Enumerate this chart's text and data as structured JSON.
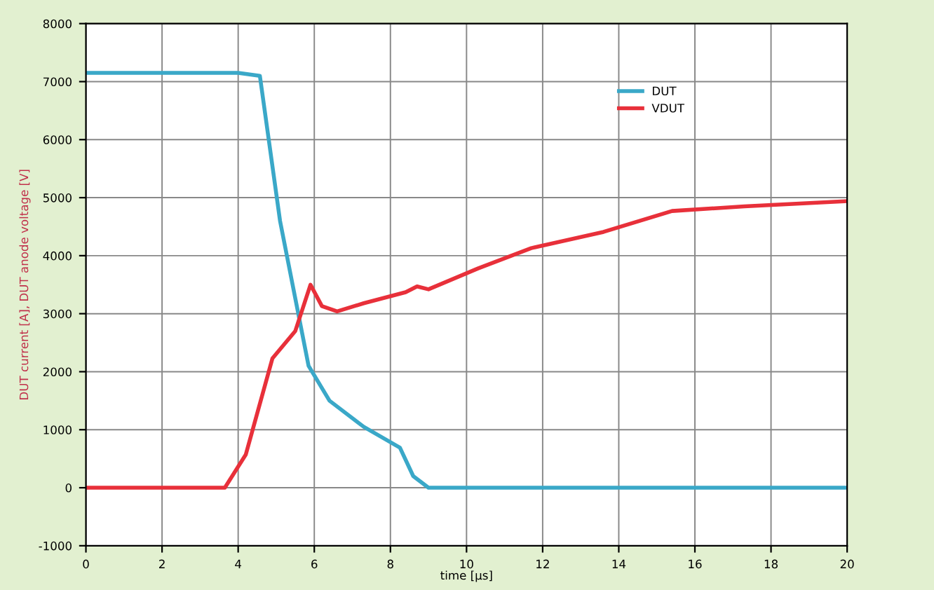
{
  "chart_data": {
    "type": "line",
    "xlabel": "time [µs]",
    "ylabel": "DUT current [A], DUT anode voltage [V]",
    "xlim": [
      0,
      20
    ],
    "ylim": [
      -1000,
      8000
    ],
    "xticks": [
      0,
      2,
      4,
      6,
      8,
      10,
      12,
      14,
      16,
      18,
      20
    ],
    "yticks": [
      -1000,
      0,
      1000,
      2000,
      3000,
      4000,
      5000,
      6000,
      7000,
      8000
    ],
    "grid": true,
    "legend": "top right",
    "series": [
      {
        "name": "DUT",
        "color": "#3aa8c8",
        "x": [
          0,
          2,
          4,
          4.57,
          5.1,
          5.85,
          6.4,
          7.3,
          8.25,
          8.6,
          9.0,
          12,
          16,
          20
        ],
        "values": [
          7150,
          7150,
          7150,
          7100,
          4600,
          2100,
          1500,
          1050,
          690,
          200,
          0,
          0,
          0,
          0
        ]
      },
      {
        "name": "VDUT",
        "color": "#e8303a",
        "x": [
          0,
          2,
          3.65,
          4.2,
          4.9,
          5.5,
          5.9,
          6.2,
          6.6,
          7.3,
          8.4,
          8.7,
          9.0,
          10.3,
          11.7,
          13.6,
          15.4,
          17.3,
          20
        ],
        "values": [
          0,
          0,
          0,
          570,
          2230,
          2700,
          3500,
          3130,
          3040,
          3180,
          3370,
          3470,
          3420,
          3780,
          4130,
          4410,
          4770,
          4850,
          4940
        ]
      }
    ]
  }
}
